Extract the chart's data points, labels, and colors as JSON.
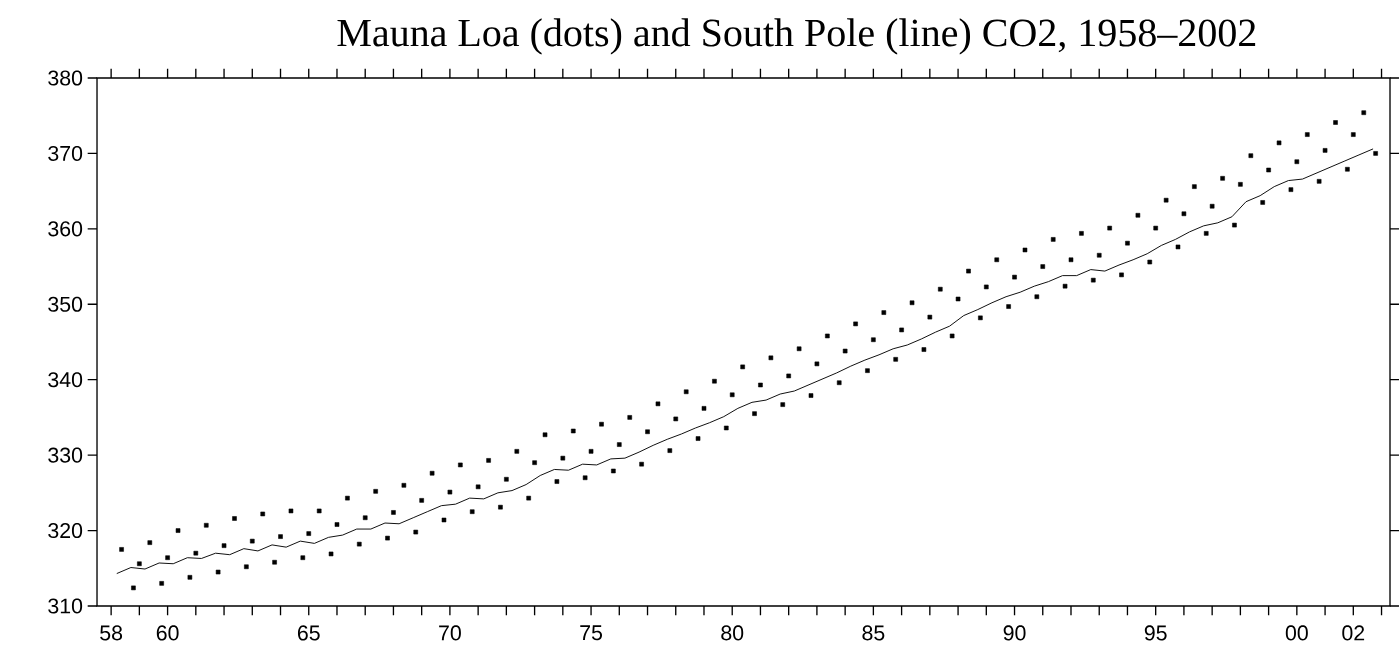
{
  "chart_data": {
    "type": "scatter",
    "title": "Mauna Loa (dots) and South Pole (line) CO2, 1958–2002",
    "xlim": [
      1957.5,
      2003.3
    ],
    "ylim": [
      310,
      380
    ],
    "yticks": [
      310,
      320,
      330,
      340,
      350,
      360,
      370,
      380
    ],
    "xticks": [
      {
        "value": 1958,
        "label": "58"
      },
      {
        "value": 1959,
        "label": null
      },
      {
        "value": 1960,
        "label": "60"
      },
      {
        "value": 1961,
        "label": null
      },
      {
        "value": 1962,
        "label": null
      },
      {
        "value": 1963,
        "label": null
      },
      {
        "value": 1964,
        "label": null
      },
      {
        "value": 1965,
        "label": "65"
      },
      {
        "value": 1966,
        "label": null
      },
      {
        "value": 1967,
        "label": null
      },
      {
        "value": 1968,
        "label": null
      },
      {
        "value": 1969,
        "label": null
      },
      {
        "value": 1970,
        "label": "70"
      },
      {
        "value": 1971,
        "label": null
      },
      {
        "value": 1972,
        "label": null
      },
      {
        "value": 1973,
        "label": null
      },
      {
        "value": 1974,
        "label": null
      },
      {
        "value": 1975,
        "label": "75"
      },
      {
        "value": 1976,
        "label": null
      },
      {
        "value": 1977,
        "label": null
      },
      {
        "value": 1978,
        "label": null
      },
      {
        "value": 1979,
        "label": null
      },
      {
        "value": 1980,
        "label": "80"
      },
      {
        "value": 1981,
        "label": null
      },
      {
        "value": 1982,
        "label": null
      },
      {
        "value": 1983,
        "label": null
      },
      {
        "value": 1984,
        "label": null
      },
      {
        "value": 1985,
        "label": "85"
      },
      {
        "value": 1986,
        "label": null
      },
      {
        "value": 1987,
        "label": null
      },
      {
        "value": 1988,
        "label": null
      },
      {
        "value": 1989,
        "label": null
      },
      {
        "value": 1990,
        "label": "90"
      },
      {
        "value": 1991,
        "label": null
      },
      {
        "value": 1992,
        "label": null
      },
      {
        "value": 1993,
        "label": null
      },
      {
        "value": 1994,
        "label": null
      },
      {
        "value": 1995,
        "label": "95"
      },
      {
        "value": 1996,
        "label": null
      },
      {
        "value": 1997,
        "label": null
      },
      {
        "value": 1998,
        "label": null
      },
      {
        "value": 1999,
        "label": null
      },
      {
        "value": 2000,
        "label": "00"
      },
      {
        "value": 2001,
        "label": null
      },
      {
        "value": 2002,
        "label": "02"
      },
      {
        "value": 2003,
        "label": null
      }
    ],
    "grid": false,
    "series": [
      {
        "color": "#000000",
        "marker": "square",
        "x": [
          1958.37,
          1958.79,
          1959.0,
          1959.37,
          1959.79,
          1960.0,
          1960.37,
          1960.79,
          1961.0,
          1961.37,
          1961.79,
          1962.0,
          1962.37,
          1962.79,
          1963.0,
          1963.37,
          1963.79,
          1964.0,
          1964.37,
          1964.79,
          1965.0,
          1965.37,
          1965.79,
          1966.0,
          1966.37,
          1966.79,
          1967.0,
          1967.37,
          1967.79,
          1968.0,
          1968.37,
          1968.79,
          1969.0,
          1969.37,
          1969.79,
          1970.0,
          1970.37,
          1970.79,
          1971.0,
          1971.37,
          1971.79,
          1972.0,
          1972.37,
          1972.79,
          1973.0,
          1973.37,
          1973.79,
          1974.0,
          1974.37,
          1974.79,
          1975.0,
          1975.37,
          1975.79,
          1976.0,
          1976.37,
          1976.79,
          1977.0,
          1977.37,
          1977.79,
          1978.0,
          1978.37,
          1978.79,
          1979.0,
          1979.37,
          1979.79,
          1980.0,
          1980.37,
          1980.79,
          1981.0,
          1981.37,
          1981.79,
          1982.0,
          1982.37,
          1982.79,
          1983.0,
          1983.37,
          1983.79,
          1984.0,
          1984.37,
          1984.79,
          1985.0,
          1985.37,
          1985.79,
          1986.0,
          1986.37,
          1986.79,
          1987.0,
          1987.37,
          1987.79,
          1988.0,
          1988.37,
          1988.79,
          1989.0,
          1989.37,
          1989.79,
          1990.0,
          1990.37,
          1990.79,
          1991.0,
          1991.37,
          1991.79,
          1992.0,
          1992.37,
          1992.79,
          1993.0,
          1993.37,
          1993.79,
          1994.0,
          1994.37,
          1994.79,
          1995.0,
          1995.37,
          1995.79,
          1996.0,
          1996.37,
          1996.79,
          1997.0,
          1997.37,
          1997.79,
          1998.0,
          1998.37,
          1998.79,
          1999.0,
          1999.37,
          1999.79,
          2000.0,
          2000.37,
          2000.79,
          2001.0,
          2001.37,
          2001.79,
          2002.0,
          2002.37,
          2002.79
        ],
        "values": [
          317.5,
          312.4,
          315.6,
          318.4,
          313.0,
          316.4,
          320.0,
          313.8,
          317.0,
          320.7,
          314.5,
          318.0,
          321.6,
          315.2,
          318.6,
          322.2,
          315.8,
          319.2,
          322.6,
          316.4,
          319.6,
          322.6,
          316.9,
          320.8,
          324.3,
          318.2,
          321.7,
          325.2,
          319.0,
          322.4,
          326.0,
          319.8,
          324.0,
          327.6,
          321.4,
          325.1,
          328.7,
          322.5,
          325.8,
          329.3,
          323.1,
          326.8,
          330.5,
          324.3,
          329.0,
          332.7,
          326.5,
          329.6,
          333.2,
          327.0,
          330.5,
          334.1,
          327.9,
          331.4,
          335.0,
          328.8,
          333.1,
          336.8,
          330.6,
          334.8,
          338.4,
          332.2,
          336.2,
          339.8,
          333.6,
          338.0,
          341.7,
          335.5,
          339.3,
          342.9,
          336.7,
          340.5,
          344.1,
          337.9,
          342.1,
          345.8,
          339.6,
          343.8,
          347.4,
          341.2,
          345.3,
          348.9,
          342.7,
          346.6,
          350.2,
          344.0,
          348.3,
          352.0,
          345.8,
          350.7,
          354.4,
          348.2,
          352.3,
          355.9,
          349.7,
          353.6,
          357.2,
          351.0,
          355.0,
          358.6,
          352.4,
          355.9,
          359.4,
          353.2,
          356.5,
          360.1,
          353.9,
          358.1,
          361.8,
          355.6,
          360.1,
          363.8,
          357.6,
          362.0,
          365.6,
          359.4,
          363.0,
          366.7,
          360.5,
          365.9,
          369.7,
          363.5,
          367.8,
          371.4,
          365.2,
          368.9,
          372.5,
          366.3,
          370.4,
          374.1,
          367.9,
          372.5,
          375.4,
          370.0
        ]
      },
      {
        "type": "line",
        "color": "#000000",
        "line_style": "solid",
        "x": [
          1958.2,
          1958.7,
          1959.2,
          1959.7,
          1960.2,
          1960.7,
          1961.2,
          1961.7,
          1962.2,
          1962.7,
          1963.2,
          1963.7,
          1964.2,
          1964.7,
          1965.2,
          1965.7,
          1966.2,
          1966.7,
          1967.2,
          1967.7,
          1968.2,
          1968.7,
          1969.2,
          1969.7,
          1970.2,
          1970.7,
          1971.2,
          1971.7,
          1972.2,
          1972.7,
          1973.2,
          1973.7,
          1974.2,
          1974.7,
          1975.2,
          1975.7,
          1976.2,
          1976.7,
          1977.2,
          1977.7,
          1978.2,
          1978.7,
          1979.2,
          1979.7,
          1980.2,
          1980.7,
          1981.2,
          1981.7,
          1982.2,
          1982.7,
          1983.2,
          1983.7,
          1984.2,
          1984.7,
          1985.2,
          1985.7,
          1986.2,
          1986.7,
          1987.2,
          1987.7,
          1988.2,
          1988.7,
          1989.2,
          1989.7,
          1990.2,
          1990.7,
          1991.2,
          1991.7,
          1992.2,
          1992.7,
          1993.2,
          1993.7,
          1994.2,
          1994.7,
          1995.2,
          1995.7,
          1996.2,
          1996.7,
          1997.2,
          1997.7,
          1998.2,
          1998.7,
          1999.2,
          1999.7,
          2000.2,
          2000.7,
          2001.2,
          2001.7,
          2002.2,
          2002.7
        ],
        "values": [
          314.3,
          315.1,
          314.9,
          315.7,
          315.6,
          316.4,
          316.3,
          317.0,
          316.8,
          317.6,
          317.3,
          318.1,
          317.8,
          318.6,
          318.3,
          319.1,
          319.4,
          320.2,
          320.2,
          321.0,
          320.9,
          321.7,
          322.5,
          323.3,
          323.5,
          324.3,
          324.2,
          325.0,
          325.3,
          326.1,
          327.3,
          328.1,
          328.0,
          328.8,
          328.7,
          329.5,
          329.6,
          330.4,
          331.3,
          332.1,
          332.8,
          333.6,
          334.3,
          335.1,
          336.2,
          337.0,
          337.3,
          338.1,
          338.5,
          339.3,
          340.1,
          340.9,
          341.8,
          342.6,
          343.3,
          344.1,
          344.6,
          345.4,
          346.3,
          347.1,
          348.5,
          349.3,
          350.2,
          351.0,
          351.6,
          352.4,
          353.0,
          353.8,
          353.8,
          354.6,
          354.4,
          355.2,
          355.9,
          356.7,
          357.8,
          358.6,
          359.6,
          360.4,
          360.8,
          361.6,
          363.6,
          364.4,
          365.6,
          366.4,
          366.6,
          367.4,
          368.2,
          369.0,
          369.8,
          370.6
        ]
      }
    ]
  }
}
